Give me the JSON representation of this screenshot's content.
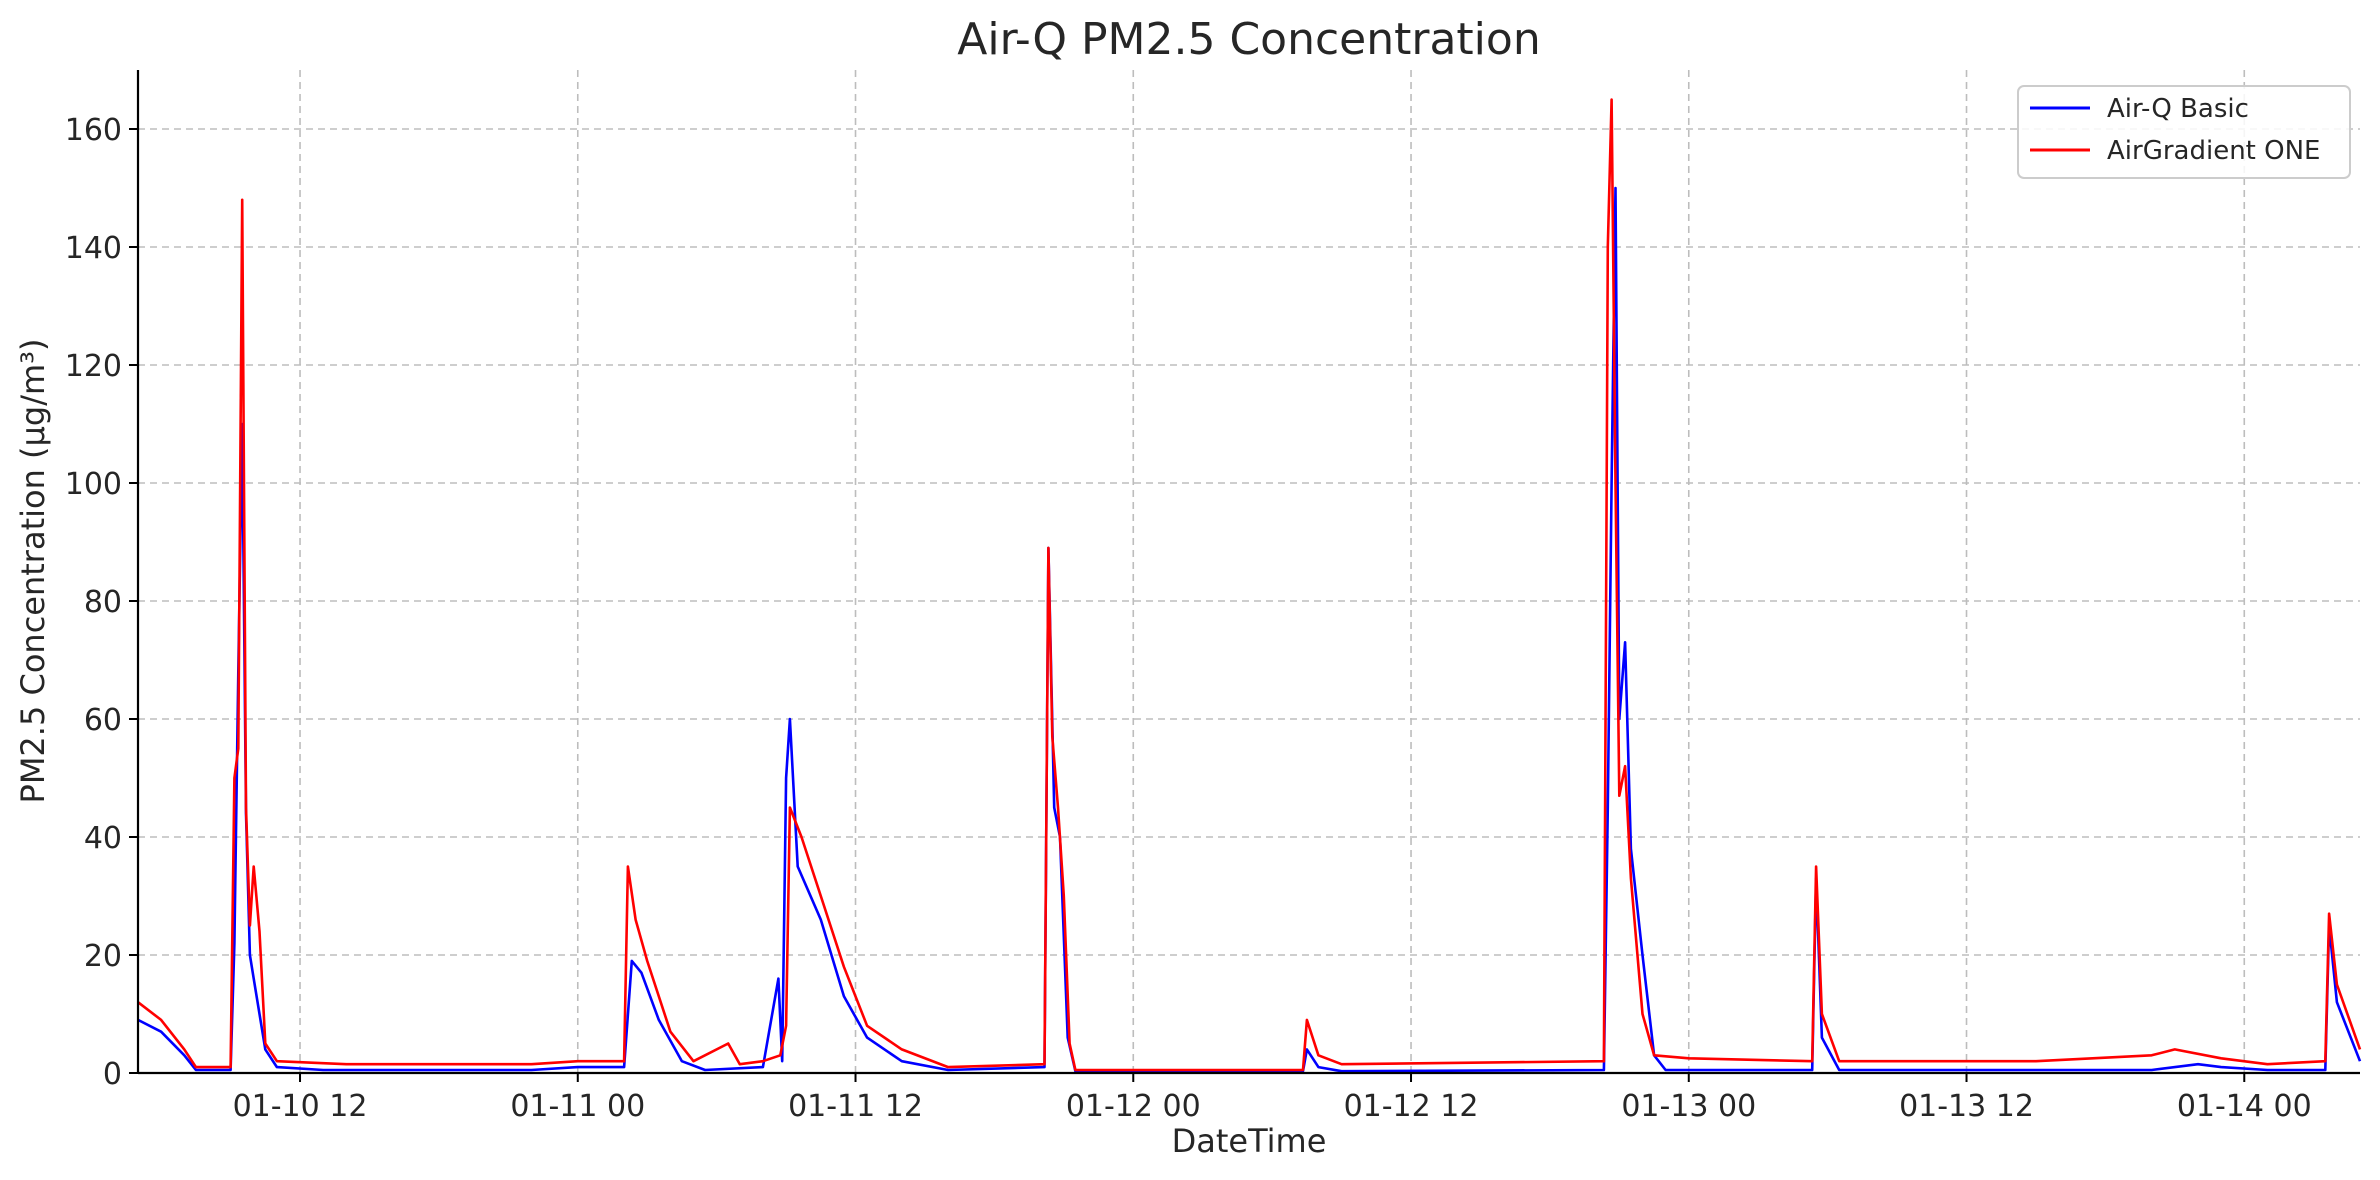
{
  "chart_data": {
    "type": "line",
    "title": "Air-Q PM2.5 Concentration",
    "xlabel": "DateTime",
    "ylabel": "PM2.5 Concentration (µg/m³)",
    "x_unit": "hour",
    "xlim": [
      "01-10 05:00",
      "01-14 05:00"
    ],
    "ylim": [
      0,
      170
    ],
    "grid": true,
    "legend_position": "top-right",
    "x_ticks": [
      {
        "x": "01-10 12:00",
        "label": "01-10 12"
      },
      {
        "x": "01-11 00:00",
        "label": "01-11 00"
      },
      {
        "x": "01-11 12:00",
        "label": "01-11 12"
      },
      {
        "x": "01-12 00:00",
        "label": "01-12 00"
      },
      {
        "x": "01-12 12:00",
        "label": "01-12 12"
      },
      {
        "x": "01-13 00:00",
        "label": "01-13 00"
      },
      {
        "x": "01-13 12:00",
        "label": "01-13 12"
      },
      {
        "x": "01-14 00:00",
        "label": "01-14 00"
      }
    ],
    "y_ticks": [
      0,
      20,
      40,
      60,
      80,
      100,
      120,
      140,
      160
    ],
    "series": [
      {
        "name": "Air-Q Basic",
        "color": "#0000ff",
        "points": [
          [
            "01-10 05:00",
            9
          ],
          [
            "01-10 06:00",
            7
          ],
          [
            "01-10 07:00",
            3
          ],
          [
            "01-10 07:30",
            0.5
          ],
          [
            "01-10 09:00",
            0.5
          ],
          [
            "01-10 09:10",
            22
          ],
          [
            "01-10 09:20",
            68
          ],
          [
            "01-10 09:30",
            110
          ],
          [
            "01-10 09:40",
            44
          ],
          [
            "01-10 09:50",
            20
          ],
          [
            "01-10 10:00",
            16
          ],
          [
            "01-10 10:30",
            4
          ],
          [
            "01-10 11:00",
            1
          ],
          [
            "01-10 13:00",
            0.5
          ],
          [
            "01-10 22:00",
            0.5
          ],
          [
            "01-11 00:00",
            1
          ],
          [
            "01-11 02:00",
            1
          ],
          [
            "01-11 02:20",
            19
          ],
          [
            "01-11 02:45",
            17
          ],
          [
            "01-11 03:30",
            9
          ],
          [
            "01-11 04:30",
            2
          ],
          [
            "01-11 05:30",
            0.5
          ],
          [
            "01-11 08:00",
            1
          ],
          [
            "01-11 08:40",
            16
          ],
          [
            "01-11 08:50",
            2
          ],
          [
            "01-11 09:00",
            50
          ],
          [
            "01-11 09:10",
            60
          ],
          [
            "01-11 09:30",
            35
          ],
          [
            "01-11 10:30",
            26
          ],
          [
            "01-11 11:30",
            13
          ],
          [
            "01-11 12:30",
            6
          ],
          [
            "01-11 14:00",
            2
          ],
          [
            "01-11 16:00",
            0.5
          ],
          [
            "01-11 20:10",
            1
          ],
          [
            "01-11 20:20",
            89
          ],
          [
            "01-11 20:35",
            45
          ],
          [
            "01-11 20:50",
            40
          ],
          [
            "01-11 21:10",
            6
          ],
          [
            "01-11 21:30",
            0.3
          ],
          [
            "01-12 07:20",
            0.3
          ],
          [
            "01-12 07:30",
            4
          ],
          [
            "01-12 08:00",
            1
          ],
          [
            "01-12 09:00",
            0.3
          ],
          [
            "01-12 20:20",
            0.5
          ],
          [
            "01-12 20:30",
            45
          ],
          [
            "01-12 20:40",
            100
          ],
          [
            "01-12 20:50",
            150
          ],
          [
            "01-12 21:00",
            60
          ],
          [
            "01-12 21:15",
            73
          ],
          [
            "01-12 21:30",
            38
          ],
          [
            "01-12 22:00",
            20
          ],
          [
            "01-12 22:30",
            3
          ],
          [
            "01-12 23:00",
            0.5
          ],
          [
            "01-13 05:20",
            0.5
          ],
          [
            "01-13 05:30",
            33
          ],
          [
            "01-13 05:45",
            6
          ],
          [
            "01-13 06:30",
            0.5
          ],
          [
            "01-13 20:00",
            0.5
          ],
          [
            "01-13 22:00",
            1.5
          ],
          [
            "01-13 23:00",
            1
          ],
          [
            "01-14 01:00",
            0.5
          ],
          [
            "01-14 03:30",
            0.5
          ],
          [
            "01-14 03:40",
            25
          ],
          [
            "01-14 04:00",
            12
          ],
          [
            "01-14 05:00",
            2
          ]
        ]
      },
      {
        "name": "AirGradient ONE",
        "color": "#ff0000",
        "points": [
          [
            "01-10 05:00",
            12
          ],
          [
            "01-10 06:00",
            9
          ],
          [
            "01-10 07:00",
            4
          ],
          [
            "01-10 07:30",
            1
          ],
          [
            "01-10 09:00",
            1
          ],
          [
            "01-10 09:10",
            50
          ],
          [
            "01-10 09:20",
            55
          ],
          [
            "01-10 09:30",
            148
          ],
          [
            "01-10 09:40",
            45
          ],
          [
            "01-10 09:50",
            25
          ],
          [
            "01-10 10:00",
            35
          ],
          [
            "01-10 10:15",
            24
          ],
          [
            "01-10 10:30",
            5
          ],
          [
            "01-10 11:00",
            2
          ],
          [
            "01-10 14:00",
            1.5
          ],
          [
            "01-10 22:00",
            1.5
          ],
          [
            "01-11 00:00",
            2
          ],
          [
            "01-11 02:00",
            2
          ],
          [
            "01-11 02:10",
            35
          ],
          [
            "01-11 02:30",
            26
          ],
          [
            "01-11 03:00",
            19
          ],
          [
            "01-11 04:00",
            7
          ],
          [
            "01-11 05:00",
            2
          ],
          [
            "01-11 06:30",
            5
          ],
          [
            "01-11 07:00",
            1.5
          ],
          [
            "01-11 08:00",
            2
          ],
          [
            "01-11 08:45",
            3
          ],
          [
            "01-11 09:00",
            8
          ],
          [
            "01-11 09:10",
            45
          ],
          [
            "01-11 09:40",
            40
          ],
          [
            "01-11 10:30",
            30
          ],
          [
            "01-11 11:30",
            18
          ],
          [
            "01-11 12:30",
            8
          ],
          [
            "01-11 14:00",
            4
          ],
          [
            "01-11 16:00",
            1
          ],
          [
            "01-11 20:10",
            1.5
          ],
          [
            "01-11 20:20",
            89
          ],
          [
            "01-11 20:30",
            57
          ],
          [
            "01-11 20:45",
            45
          ],
          [
            "01-11 21:00",
            30
          ],
          [
            "01-11 21:15",
            5
          ],
          [
            "01-11 21:30",
            0.5
          ],
          [
            "01-12 07:20",
            0.5
          ],
          [
            "01-12 07:30",
            9
          ],
          [
            "01-12 08:00",
            3
          ],
          [
            "01-12 09:00",
            1.5
          ],
          [
            "01-12 20:20",
            2
          ],
          [
            "01-12 20:30",
            140
          ],
          [
            "01-12 20:40",
            165
          ],
          [
            "01-12 20:50",
            100
          ],
          [
            "01-12 21:00",
            47
          ],
          [
            "01-12 21:15",
            52
          ],
          [
            "01-12 21:30",
            33
          ],
          [
            "01-12 22:00",
            10
          ],
          [
            "01-12 22:30",
            3
          ],
          [
            "01-13 00:00",
            2.5
          ],
          [
            "01-13 05:20",
            2
          ],
          [
            "01-13 05:30",
            35
          ],
          [
            "01-13 05:45",
            10
          ],
          [
            "01-13 06:30",
            2
          ],
          [
            "01-13 15:00",
            2
          ],
          [
            "01-13 20:00",
            3
          ],
          [
            "01-13 21:00",
            4
          ],
          [
            "01-13 23:00",
            2.5
          ],
          [
            "01-14 01:00",
            1.5
          ],
          [
            "01-14 03:30",
            2
          ],
          [
            "01-14 03:40",
            27
          ],
          [
            "01-14 04:00",
            15
          ],
          [
            "01-14 05:00",
            4
          ]
        ]
      }
    ]
  }
}
